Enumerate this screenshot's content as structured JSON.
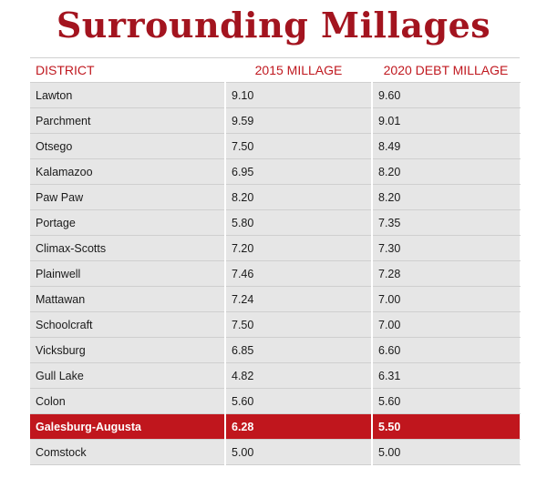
{
  "title": "Surrounding Millages",
  "chart_data": {
    "type": "table",
    "title": "Surrounding Millages",
    "columns": [
      "DISTRICT",
      "2015 MILLAGE",
      "2020 DEBT MILLAGE"
    ],
    "rows": [
      [
        "Lawton",
        "9.10",
        "9.60"
      ],
      [
        "Parchment",
        "9.59",
        "9.01"
      ],
      [
        "Otsego",
        "7.50",
        "8.49"
      ],
      [
        "Kalamazoo",
        "6.95",
        "8.20"
      ],
      [
        "Paw Paw",
        "8.20",
        "8.20"
      ],
      [
        "Portage",
        "5.80",
        "7.35"
      ],
      [
        "Climax-Scotts",
        "7.20",
        "7.30"
      ],
      [
        "Plainwell",
        "7.46",
        "7.28"
      ],
      [
        "Mattawan",
        "7.24",
        "7.00"
      ],
      [
        "Schoolcraft",
        "7.50",
        "7.00"
      ],
      [
        "Vicksburg",
        "6.85",
        "6.60"
      ],
      [
        "Gull Lake",
        "4.82",
        "6.31"
      ],
      [
        "Colon",
        "5.60",
        "5.60"
      ],
      [
        "Galesburg-Augusta",
        "6.28",
        "5.50"
      ],
      [
        "Comstock",
        "5.00",
        "5.00"
      ]
    ],
    "highlight_row": "Galesburg-Augusta",
    "colors": {
      "accent": "#c0181f",
      "title": "#a3141f",
      "row_bg": "#e6e6e6",
      "highlight_text": "#ffffff"
    }
  }
}
